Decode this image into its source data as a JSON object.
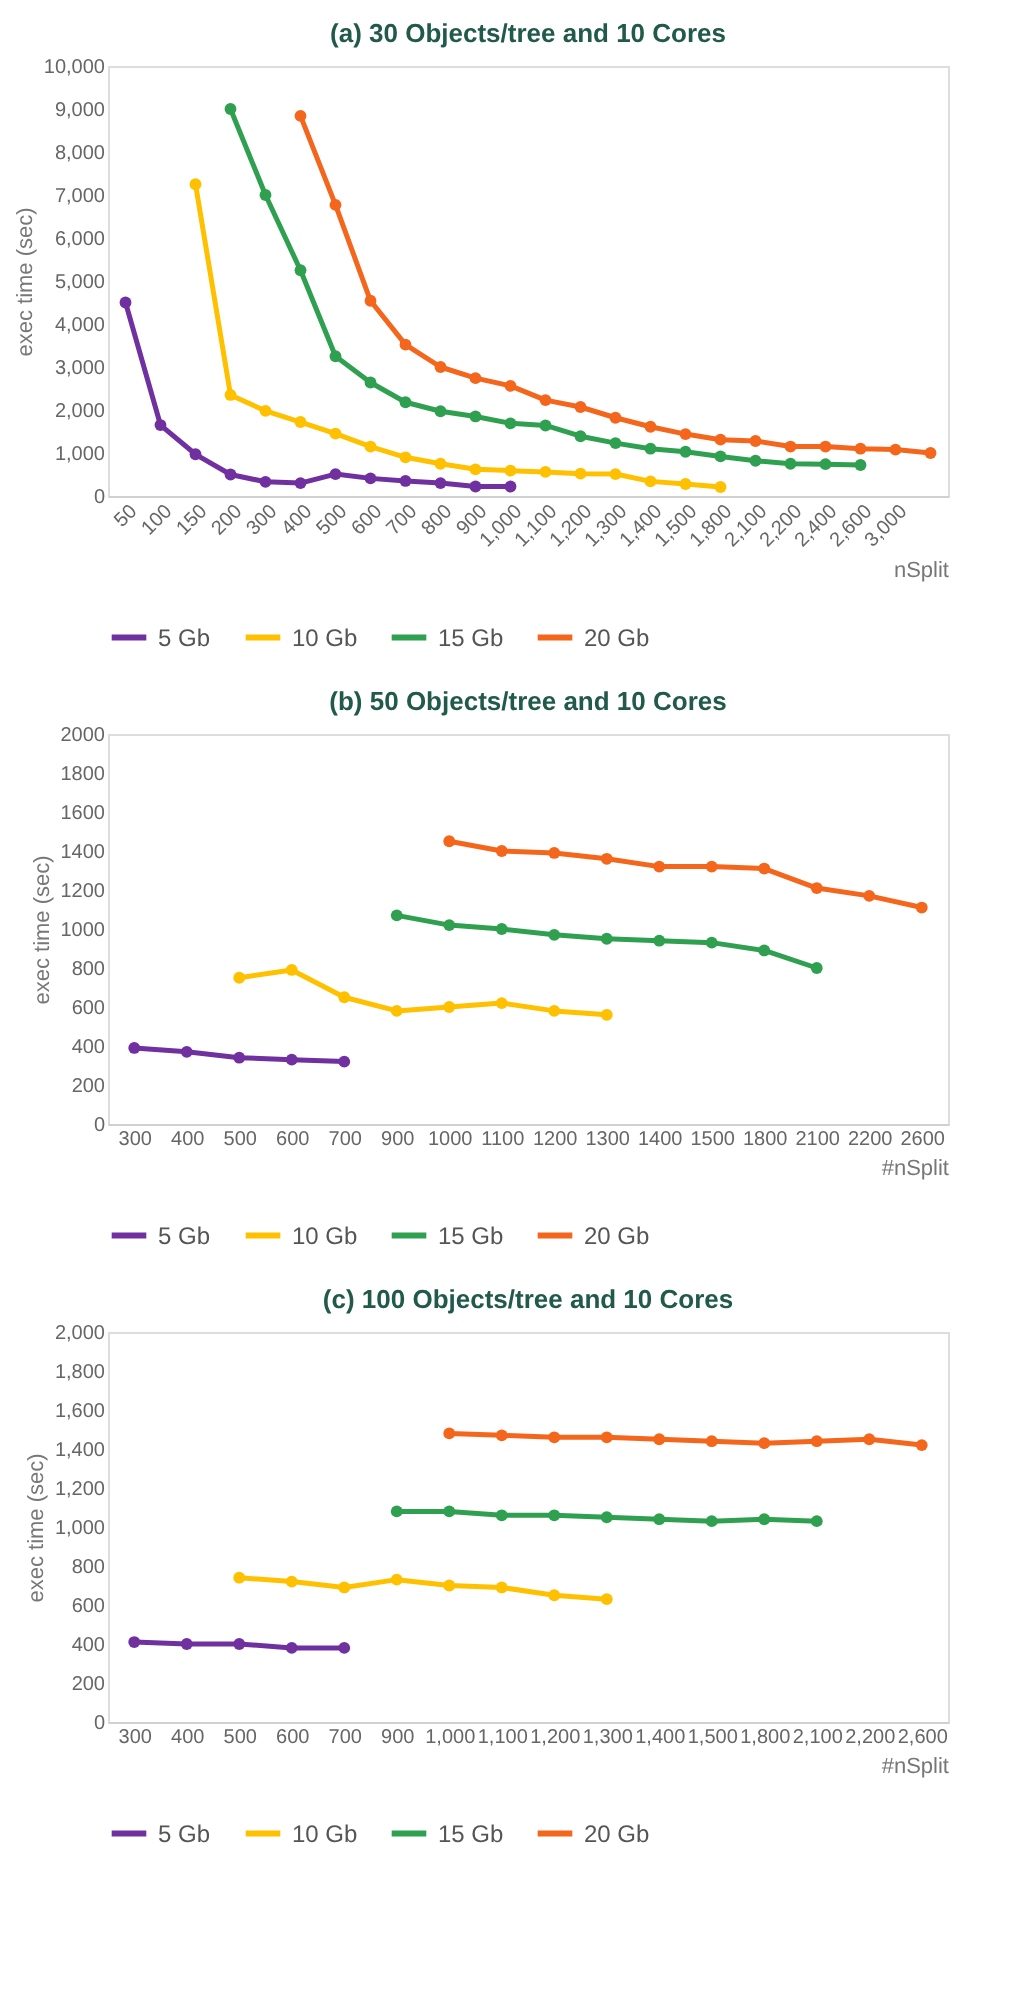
{
  "chart_data": [
    {
      "type": "line",
      "title": "(a) 30 Objects/tree and 10 Cores",
      "xlabel": "nSplit",
      "ylabel": "exec time (sec)",
      "categories": [
        "50",
        "100",
        "150",
        "200",
        "300",
        "400",
        "500",
        "600",
        "700",
        "800",
        "900",
        "1,000",
        "1,100",
        "1,200",
        "1,300",
        "1,400",
        "1,500",
        "1,800",
        "2,100",
        "2,200",
        "2,400",
        "2,600",
        "3,000",
        null
      ],
      "ylim": [
        0,
        10000
      ],
      "yticks": [
        0,
        {
          "value": 1000,
          "label": "1,000"
        },
        {
          "value": 2000,
          "label": "2,000"
        },
        {
          "value": 3000,
          "label": "3,000"
        },
        {
          "value": 4000,
          "label": "4,000"
        },
        {
          "value": 5000,
          "label": "5,000"
        },
        {
          "value": 6000,
          "label": "6,000"
        },
        {
          "value": 7000,
          "label": "7,000"
        },
        {
          "value": 8000,
          "label": "8,000"
        },
        {
          "value": 9000,
          "label": "9,000"
        },
        {
          "value": 10000,
          "label": "10,000"
        }
      ],
      "grid": false,
      "legend": "bottom",
      "marker": "circle",
      "line_style": "solid",
      "series": [
        {
          "name": "5 Gb",
          "color": "#7030a0",
          "values": [
            4500,
            1650,
            970,
            500,
            330,
            300,
            510,
            410,
            350,
            300,
            220,
            220,
            null,
            null,
            null,
            null,
            null,
            null,
            null,
            null,
            null,
            null,
            null,
            null
          ]
        },
        {
          "name": "10 Gb",
          "color": "#ffc000",
          "values": [
            null,
            null,
            7250,
            2350,
            1980,
            1720,
            1450,
            1150,
            900,
            750,
            620,
            590,
            560,
            520,
            510,
            340,
            280,
            210,
            null,
            null,
            null,
            null,
            null,
            null
          ]
        },
        {
          "name": "15 Gb",
          "color": "#2ea04f",
          "values": [
            null,
            null,
            null,
            9000,
            7000,
            5250,
            3250,
            2640,
            2180,
            1970,
            1850,
            1690,
            1640,
            1390,
            1230,
            1100,
            1030,
            920,
            820,
            750,
            740,
            720,
            null,
            null
          ]
        },
        {
          "name": "20 Gb",
          "color": "#f4661b",
          "values": [
            null,
            null,
            null,
            null,
            null,
            8840,
            6770,
            4540,
            3520,
            3000,
            2740,
            2560,
            2230,
            2070,
            1820,
            1610,
            1440,
            1310,
            1280,
            1150,
            1150,
            1100,
            1080,
            1000
          ]
        }
      ]
    },
    {
      "type": "line",
      "title": "(b) 50 Objects/tree and 10 Cores",
      "xlabel": "#nSplit",
      "ylabel": "exec time (sec)",
      "categories": [
        "300",
        "400",
        "500",
        "600",
        "700",
        "900",
        "1000",
        "1100",
        "1200",
        "1300",
        "1400",
        "1500",
        "1800",
        "2100",
        "2200",
        "2600"
      ],
      "ylim": [
        0,
        2000
      ],
      "yticks": [
        0,
        200,
        400,
        600,
        800,
        1000,
        1200,
        1400,
        1600,
        1800,
        2000
      ],
      "grid": false,
      "legend": "bottom",
      "marker": "circle",
      "line_style": "solid",
      "series": [
        {
          "name": "5 Gb",
          "color": "#7030a0",
          "values": [
            390,
            370,
            340,
            330,
            320,
            null,
            null,
            null,
            null,
            null,
            null,
            null,
            null,
            null,
            null,
            null
          ]
        },
        {
          "name": "10 Gb",
          "color": "#ffc000",
          "values": [
            null,
            null,
            750,
            790,
            650,
            580,
            600,
            620,
            580,
            560,
            null,
            null,
            null,
            null,
            null,
            null
          ]
        },
        {
          "name": "15 Gb",
          "color": "#2ea04f",
          "values": [
            null,
            null,
            null,
            null,
            null,
            1070,
            1020,
            1000,
            970,
            950,
            940,
            930,
            890,
            800,
            null,
            null
          ]
        },
        {
          "name": "20 Gb",
          "color": "#f4661b",
          "values": [
            null,
            null,
            null,
            null,
            null,
            null,
            1450,
            1400,
            1390,
            1360,
            1320,
            1320,
            1310,
            1210,
            1170,
            1110
          ]
        }
      ]
    },
    {
      "type": "line",
      "title": "(c) 100 Objects/tree and 10 Cores",
      "xlabel": "#nSplit",
      "ylabel": "exec time (sec)",
      "categories": [
        "300",
        "400",
        "500",
        "600",
        "700",
        "900",
        "1,000",
        "1,100",
        "1,200",
        "1,300",
        "1,400",
        "1,500",
        "1,800",
        "2,100",
        "2,200",
        "2,600"
      ],
      "ylim": [
        0,
        2000
      ],
      "yticks": [
        0,
        200,
        400,
        600,
        800,
        {
          "value": 1000,
          "label": "1,000"
        },
        {
          "value": 1200,
          "label": "1,200"
        },
        {
          "value": 1400,
          "label": "1,400"
        },
        {
          "value": 1600,
          "label": "1,600"
        },
        {
          "value": 1800,
          "label": "1,800"
        },
        {
          "value": 2000,
          "label": "2,000"
        }
      ],
      "grid": false,
      "legend": "bottom",
      "marker": "circle",
      "line_style": "solid",
      "series": [
        {
          "name": "5 Gb",
          "color": "#7030a0",
          "values": [
            410,
            400,
            400,
            380,
            380,
            null,
            null,
            null,
            null,
            null,
            null,
            null,
            null,
            null,
            null,
            null
          ]
        },
        {
          "name": "10 Gb",
          "color": "#ffc000",
          "values": [
            null,
            null,
            740,
            720,
            690,
            730,
            700,
            690,
            650,
            630,
            null,
            null,
            null,
            null,
            null,
            null
          ]
        },
        {
          "name": "15 Gb",
          "color": "#2ea04f",
          "values": [
            null,
            null,
            null,
            null,
            null,
            1080,
            1080,
            1060,
            1060,
            1050,
            1040,
            1030,
            1040,
            1030,
            null,
            null
          ]
        },
        {
          "name": "20 Gb",
          "color": "#f4661b",
          "values": [
            null,
            null,
            null,
            null,
            null,
            null,
            1480,
            1470,
            1460,
            1460,
            1450,
            1440,
            1430,
            1440,
            1450,
            1420
          ]
        }
      ]
    }
  ]
}
